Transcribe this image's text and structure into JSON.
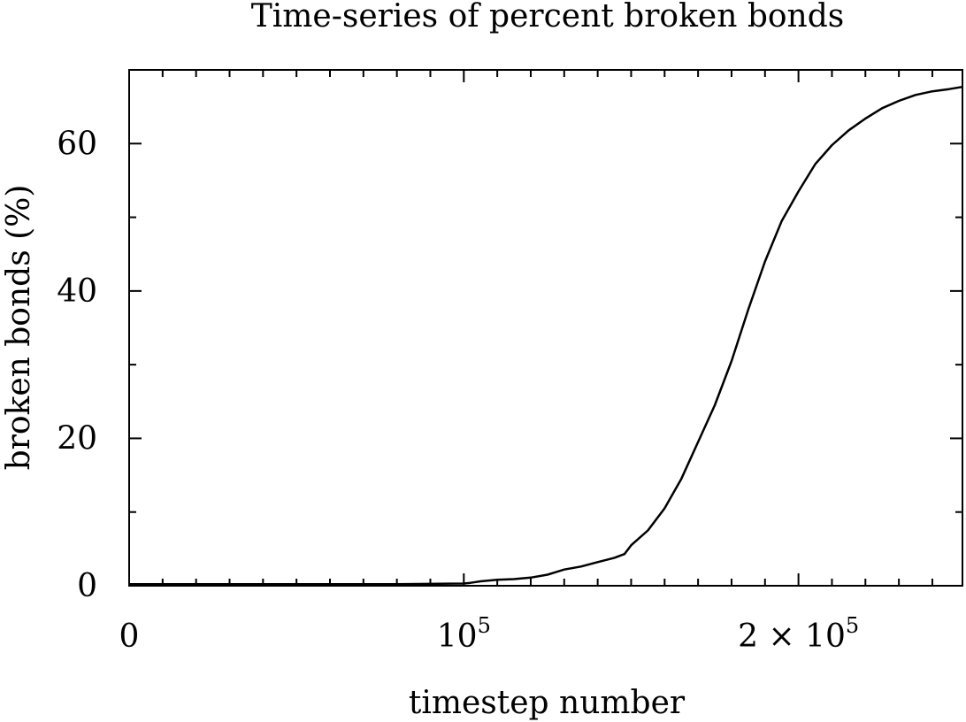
{
  "chart_data": {
    "type": "line",
    "title": "Time-series of percent broken bonds",
    "xlabel": "timestep number",
    "ylabel": "broken bonds (%)",
    "xlim": [
      0,
      249000
    ],
    "ylim": [
      0,
      70
    ],
    "grid": false,
    "legend": "none",
    "x_ticks": [
      {
        "value": 0,
        "base": "0",
        "exp": ""
      },
      {
        "value": 100000,
        "base": "10",
        "exp": "5"
      },
      {
        "value": 200000,
        "base": "2 × 10",
        "exp": "5"
      }
    ],
    "x_minor_tick_step": 10000,
    "y_ticks": [
      {
        "value": 0,
        "label": "0"
      },
      {
        "value": 20,
        "label": "20"
      },
      {
        "value": 40,
        "label": "40"
      },
      {
        "value": 60,
        "label": "60"
      }
    ],
    "y_minor_tick_step": 10,
    "series": [
      {
        "color": "#000000",
        "x": [
          0,
          20000,
          40000,
          60000,
          80000,
          100000,
          102000,
          105000,
          110000,
          115000,
          120000,
          125000,
          130000,
          135000,
          140000,
          145000,
          148000,
          150000,
          155000,
          160000,
          165000,
          170000,
          175000,
          180000,
          185000,
          190000,
          195000,
          200000,
          205000,
          210000,
          215000,
          220000,
          225000,
          230000,
          235000,
          240000,
          245000,
          249000
        ],
        "y": [
          0.2,
          0.2,
          0.2,
          0.2,
          0.2,
          0.3,
          0.4,
          0.6,
          0.8,
          0.9,
          1.1,
          1.5,
          2.2,
          2.6,
          3.2,
          3.8,
          4.3,
          5.5,
          7.5,
          10.5,
          14.5,
          19.5,
          24.5,
          30.5,
          37.5,
          44.0,
          49.5,
          53.5,
          57.2,
          59.8,
          61.8,
          63.4,
          64.8,
          65.8,
          66.6,
          67.1,
          67.4,
          67.7
        ]
      }
    ]
  }
}
